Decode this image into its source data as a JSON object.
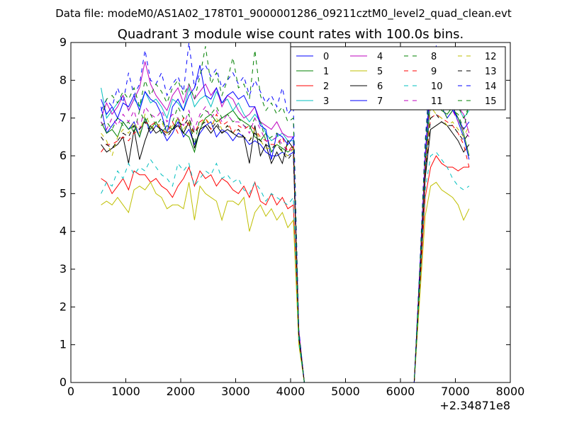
{
  "header": {
    "data_file": "Data file: modeM0/AS1A02_178T01_9000001286_09211cztM0_level2_quad_clean.evt"
  },
  "chart_data": {
    "type": "line",
    "title": "Quadrant 3 module wise count rates with 100.0s bins.",
    "xlabel": "",
    "ylabel": "",
    "x_offset_label": "+2.34871e8",
    "xlim": [
      0,
      8000
    ],
    "ylim": [
      0,
      9
    ],
    "xticks": [
      0,
      1000,
      2000,
      3000,
      4000,
      5000,
      6000,
      7000,
      8000
    ],
    "yticks": [
      0,
      1,
      2,
      3,
      4,
      5,
      6,
      7,
      8,
      9
    ],
    "grid": false,
    "legend_placement": "top-right",
    "legend_columns": 4,
    "x": [
      550,
      650,
      750,
      850,
      950,
      1050,
      1150,
      1250,
      1350,
      1450,
      1550,
      1650,
      1750,
      1850,
      1950,
      2050,
      2150,
      2250,
      2350,
      2450,
      2550,
      2650,
      2750,
      2850,
      2950,
      3050,
      3150,
      3250,
      3350,
      3450,
      3550,
      3650,
      3750,
      3850,
      3950,
      4050,
      4150,
      4250,
      6250,
      6350,
      6450,
      6550,
      6650,
      6750,
      6850,
      6950,
      7050,
      7150,
      7250
    ],
    "series": [
      {
        "name": "0",
        "color": "#0000ff",
        "dash": "solid",
        "values": [
          7.3,
          6.6,
          6.8,
          7.0,
          6.9,
          6.7,
          6.9,
          6.5,
          7.0,
          6.6,
          6.8,
          6.7,
          6.4,
          6.6,
          6.9,
          6.5,
          6.7,
          6.3,
          6.6,
          6.8,
          6.9,
          6.5,
          6.7,
          6.6,
          6.4,
          6.6,
          6.5,
          6.3,
          6.4,
          6.3,
          6.1,
          6.0,
          6.0,
          6.1,
          6.0,
          6.1,
          1.2,
          0,
          0,
          2.8,
          5.5,
          7.6,
          7.4,
          7.3,
          7.0,
          7.2,
          7.0,
          6.7,
          6.9
        ]
      },
      {
        "name": "1",
        "color": "#008000",
        "dash": "solid",
        "values": [
          6.9,
          6.6,
          6.7,
          6.5,
          6.9,
          6.7,
          6.8,
          6.5,
          7.0,
          6.7,
          6.9,
          6.6,
          6.8,
          6.7,
          7.0,
          6.6,
          6.5,
          6.1,
          6.7,
          7.0,
          7.1,
          6.9,
          7.0,
          7.1,
          7.2,
          7.0,
          6.9,
          6.8,
          6.5,
          6.4,
          6.6,
          6.1,
          6.3,
          6.2,
          6.1,
          6.2,
          1.3,
          0,
          0,
          2.6,
          5.6,
          7.6,
          7.5,
          7.2,
          7.1,
          7.3,
          7.0,
          6.6,
          6.0
        ]
      },
      {
        "name": "2",
        "color": "#ff0000",
        "dash": "solid",
        "values": [
          5.4,
          5.3,
          5.0,
          5.2,
          5.4,
          5.1,
          5.6,
          5.5,
          5.5,
          5.3,
          5.4,
          5.2,
          5.1,
          4.9,
          5.2,
          5.4,
          5.7,
          5.2,
          5.6,
          5.4,
          5.5,
          5.2,
          5.4,
          5.3,
          5.1,
          5.0,
          5.2,
          4.9,
          5.3,
          4.8,
          4.7,
          5.0,
          4.7,
          4.9,
          4.6,
          4.7,
          1.1,
          0,
          0,
          2.4,
          4.9,
          5.7,
          6.0,
          5.8,
          5.7,
          5.7,
          5.6,
          5.7,
          5.7
        ]
      },
      {
        "name": "3",
        "color": "#00bfbf",
        "dash": "solid",
        "values": [
          7.8,
          7.0,
          7.2,
          7.4,
          7.6,
          7.2,
          7.5,
          7.3,
          7.7,
          7.4,
          7.5,
          7.3,
          7.0,
          7.5,
          7.4,
          7.2,
          7.8,
          7.3,
          7.5,
          7.6,
          7.3,
          7.7,
          7.4,
          7.5,
          7.2,
          7.4,
          7.1,
          6.9,
          7.1,
          6.9,
          6.6,
          6.4,
          6.5,
          6.6,
          6.4,
          6.4,
          1.3,
          0,
          0,
          2.9,
          5.9,
          7.9,
          7.7,
          7.6,
          7.4,
          7.5,
          7.3,
          7.0,
          7.2
        ]
      },
      {
        "name": "4",
        "color": "#bf00bf",
        "dash": "solid",
        "values": [
          7.0,
          7.4,
          7.1,
          7.3,
          7.6,
          7.2,
          7.5,
          7.8,
          8.5,
          7.9,
          7.6,
          7.4,
          7.2,
          7.6,
          7.8,
          7.4,
          7.9,
          7.5,
          7.7,
          7.9,
          7.6,
          7.8,
          7.3,
          7.6,
          7.5,
          7.2,
          7.0,
          7.1,
          7.3,
          6.9,
          6.8,
          6.7,
          6.9,
          6.6,
          6.5,
          6.5,
          1.4,
          0,
          0,
          2.9,
          6.0,
          8.0,
          8.1,
          7.7,
          7.5,
          7.7,
          7.3,
          7.1,
          6.6
        ]
      },
      {
        "name": "5",
        "color": "#bfbf00",
        "dash": "solid",
        "values": [
          4.7,
          4.8,
          4.7,
          4.9,
          4.7,
          4.5,
          5.1,
          5.2,
          5.1,
          5.3,
          5.0,
          4.9,
          4.6,
          4.7,
          4.7,
          4.6,
          5.3,
          4.3,
          5.2,
          5.0,
          4.9,
          4.8,
          4.3,
          4.8,
          4.8,
          4.7,
          4.9,
          4.0,
          4.5,
          4.7,
          4.4,
          4.6,
          4.3,
          4.5,
          4.1,
          4.3,
          1.0,
          0,
          0,
          2.2,
          4.4,
          5.2,
          5.3,
          5.1,
          5.0,
          4.9,
          4.7,
          4.3,
          4.6
        ]
      },
      {
        "name": "6",
        "color": "#000000",
        "dash": "solid",
        "values": [
          6.3,
          6.1,
          6.2,
          6.3,
          6.5,
          5.8,
          6.7,
          5.9,
          6.4,
          6.8,
          6.6,
          6.7,
          6.6,
          6.7,
          6.8,
          6.6,
          6.9,
          6.2,
          6.7,
          6.8,
          6.6,
          6.8,
          6.6,
          6.7,
          6.6,
          6.5,
          6.5,
          5.8,
          6.8,
          6.0,
          6.3,
          5.8,
          6.1,
          5.8,
          6.4,
          6.2,
          1.2,
          0,
          0,
          2.6,
          5.4,
          6.7,
          6.8,
          6.9,
          6.8,
          6.6,
          6.4,
          6.1,
          6.3
        ]
      },
      {
        "name": "7",
        "color": "#0000ff",
        "dash": "solid",
        "values": [
          7.5,
          7.1,
          7.3,
          7.0,
          7.4,
          7.3,
          7.6,
          7.2,
          7.7,
          7.5,
          7.4,
          7.1,
          6.6,
          7.3,
          7.5,
          7.2,
          7.6,
          7.8,
          8.4,
          7.6,
          7.5,
          7.8,
          7.4,
          7.6,
          7.7,
          7.5,
          7.6,
          7.3,
          7.3,
          6.8,
          6.7,
          5.9,
          6.6,
          6.5,
          6.3,
          6.5,
          1.3,
          0,
          0,
          2.9,
          6.0,
          8.1,
          7.9,
          7.5,
          7.3,
          7.3,
          6.9,
          6.5,
          5.9
        ]
      },
      {
        "name": "8",
        "color": "#008000",
        "dash": "dashed",
        "values": [
          6.8,
          6.9,
          6.7,
          7.0,
          6.8,
          6.9,
          6.6,
          7.2,
          6.9,
          7.1,
          6.8,
          7.0,
          6.6,
          6.9,
          7.3,
          7.0,
          7.1,
          6.3,
          7.0,
          7.2,
          7.1,
          7.3,
          7.0,
          7.1,
          6.9,
          7.0,
          6.8,
          6.7,
          7.0,
          6.9,
          6.4,
          6.5,
          6.6,
          6.1,
          6.3,
          6.2,
          1.3,
          0,
          0,
          2.7,
          5.8,
          7.9,
          7.5,
          7.3,
          7.0,
          7.2,
          7.1,
          6.7,
          7.4
        ]
      },
      {
        "name": "9",
        "color": "#ff0000",
        "dash": "dashed",
        "values": [
          6.1,
          6.3,
          6.3,
          6.4,
          6.5,
          6.4,
          6.6,
          6.7,
          6.9,
          6.8,
          6.9,
          6.7,
          6.6,
          6.9,
          6.6,
          7.0,
          6.8,
          6.6,
          6.9,
          7.0,
          6.7,
          7.1,
          6.8,
          6.9,
          6.6,
          6.8,
          6.7,
          6.8,
          6.7,
          6.5,
          6.4,
          6.3,
          6.3,
          6.5,
          6.1,
          6.3,
          1.2,
          0,
          0,
          2.7,
          5.7,
          7.0,
          7.1,
          7.0,
          6.9,
          6.8,
          6.6,
          6.3,
          5.7
        ]
      },
      {
        "name": "10",
        "color": "#00bfbf",
        "dash": "dashed",
        "values": [
          5.0,
          5.3,
          5.2,
          5.6,
          5.4,
          5.8,
          5.5,
          5.7,
          5.6,
          5.9,
          5.7,
          5.5,
          5.4,
          5.2,
          5.8,
          5.6,
          5.8,
          5.2,
          5.4,
          5.6,
          5.5,
          5.8,
          5.4,
          5.5,
          5.3,
          5.4,
          5.1,
          5.0,
          5.3,
          5.1,
          4.8,
          5.0,
          4.9,
          4.8,
          4.7,
          4.9,
          1.1,
          0,
          0,
          2.5,
          5.1,
          6.0,
          6.1,
          5.9,
          5.7,
          5.4,
          5.2,
          5.1,
          5.2
        ]
      },
      {
        "name": "11",
        "color": "#bf00bf",
        "dash": "dashed",
        "values": [
          6.9,
          6.7,
          7.0,
          6.8,
          7.1,
          6.9,
          7.2,
          6.7,
          7.3,
          7.1,
          7.0,
          7.2,
          6.9,
          7.1,
          7.0,
          6.8,
          7.2,
          6.7,
          7.1,
          7.3,
          7.0,
          7.2,
          6.9,
          7.1,
          6.9,
          6.9,
          6.8,
          6.6,
          7.0,
          6.7,
          6.4,
          6.4,
          6.5,
          6.3,
          6.1,
          6.2,
          1.3,
          0,
          0,
          2.8,
          5.9,
          7.6,
          8.0,
          7.7,
          7.4,
          7.2,
          6.9,
          6.7,
          6.5
        ]
      },
      {
        "name": "12",
        "color": "#bfbf00",
        "dash": "dashed",
        "values": [
          6.6,
          6.4,
          6.0,
          6.5,
          6.7,
          6.6,
          6.9,
          6.6,
          7.1,
          6.8,
          6.7,
          6.9,
          6.6,
          6.8,
          7.0,
          6.7,
          6.9,
          6.6,
          6.8,
          7.0,
          6.8,
          7.0,
          6.7,
          6.8,
          6.6,
          6.7,
          6.5,
          6.4,
          6.7,
          6.4,
          6.2,
          6.2,
          6.3,
          6.1,
          6.0,
          6.2,
          1.2,
          0,
          0,
          2.6,
          5.6,
          7.3,
          7.1,
          7.0,
          6.8,
          6.9,
          6.7,
          6.5,
          6.8
        ]
      },
      {
        "name": "13",
        "color": "#000000",
        "dash": "dashed",
        "values": [
          6.5,
          6.3,
          6.2,
          6.4,
          6.6,
          6.5,
          6.8,
          6.7,
          6.9,
          6.6,
          6.8,
          6.7,
          6.5,
          6.7,
          6.9,
          6.8,
          7.0,
          6.6,
          6.8,
          6.9,
          6.7,
          6.9,
          6.6,
          6.8,
          6.6,
          6.7,
          6.5,
          6.4,
          6.6,
          6.4,
          6.3,
          6.2,
          6.3,
          6.1,
          5.9,
          6.1,
          1.2,
          0,
          0,
          2.6,
          5.5,
          7.0,
          7.1,
          6.9,
          6.8,
          6.8,
          6.6,
          6.4,
          6.6
        ]
      },
      {
        "name": "14",
        "color": "#0000ff",
        "dash": "dashed",
        "values": [
          7.2,
          7.5,
          7.3,
          7.8,
          7.4,
          8.2,
          7.6,
          7.9,
          8.8,
          8.0,
          7.9,
          8.2,
          7.6,
          7.9,
          8.1,
          7.7,
          9.0,
          7.8,
          8.2,
          8.4,
          8.1,
          8.3,
          7.8,
          8.0,
          8.2,
          7.9,
          8.1,
          7.6,
          8.0,
          7.7,
          7.4,
          7.6,
          7.3,
          7.8,
          7.1,
          7.3,
          1.4,
          0,
          0,
          3.0,
          6.4,
          8.4,
          8.9,
          8.4,
          8.0,
          7.8,
          7.5,
          7.3,
          7.6
        ]
      },
      {
        "name": "15",
        "color": "#008000",
        "dash": "dashed",
        "values": [
          7.0,
          7.5,
          7.6,
          7.4,
          7.7,
          7.5,
          7.8,
          7.3,
          8.0,
          7.6,
          7.9,
          7.7,
          7.4,
          7.8,
          8.0,
          7.6,
          7.9,
          7.5,
          8.1,
          8.9,
          7.9,
          8.2,
          7.6,
          8.0,
          8.6,
          7.8,
          7.9,
          7.5,
          8.8,
          7.6,
          7.2,
          7.4,
          7.1,
          7.3,
          6.9,
          7.0,
          1.3,
          0,
          0,
          2.9,
          6.3,
          8.2,
          8.4,
          8.0,
          7.7,
          7.6,
          7.3,
          7.0,
          7.3
        ]
      }
    ]
  }
}
